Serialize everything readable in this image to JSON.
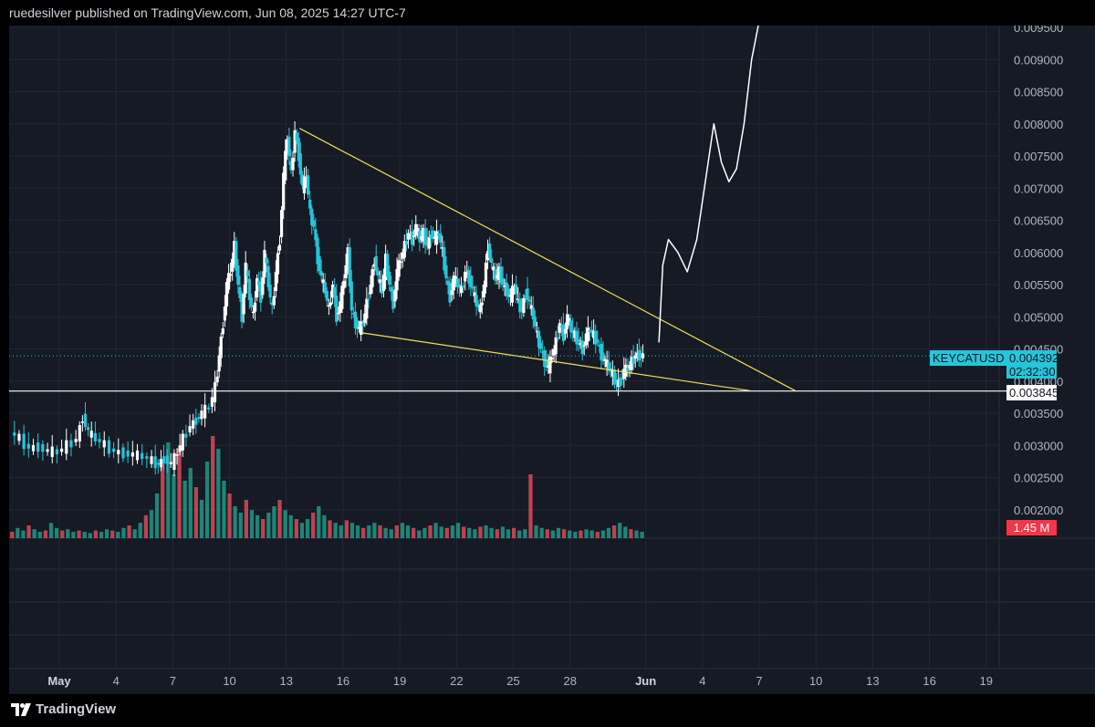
{
  "header": {
    "published": "ruedesilver published on TradingView.com, Jun 08, 2025 14:27 UTC-7"
  },
  "footer": {
    "brand": "TradingView"
  },
  "colors": {
    "background": "#161a25",
    "up": "#ffffff",
    "down": "#26c6da",
    "volume_up": "#22ab94",
    "volume_down": "#f7525f",
    "trendline": "#f1e05a",
    "symbol_badge": "#26c6da",
    "volume_badge": "#f23645"
  },
  "chart_data": {
    "type": "candlestick",
    "symbol": "KEYCATUSD",
    "last_price": "0.004392",
    "countdown": "02:32:30",
    "horizontal_line_label": "0.003845",
    "volume_label": "1.45 M",
    "ylim": [
      0.0016,
      0.0095
    ],
    "price_ticks": [
      "0.009500",
      "0.009000",
      "0.008500",
      "0.008000",
      "0.007500",
      "0.007000",
      "0.006500",
      "0.006000",
      "0.005500",
      "0.005000",
      "0.004500",
      "0.004000",
      "0.003500",
      "0.003000",
      "0.002500",
      "0.002000"
    ],
    "x_ticks": [
      {
        "label": "May",
        "day": 0,
        "bold": true
      },
      {
        "label": "4",
        "day": 3
      },
      {
        "label": "7",
        "day": 6
      },
      {
        "label": "10",
        "day": 9
      },
      {
        "label": "13",
        "day": 12
      },
      {
        "label": "16",
        "day": 15
      },
      {
        "label": "19",
        "day": 18
      },
      {
        "label": "22",
        "day": 21
      },
      {
        "label": "25",
        "day": 24
      },
      {
        "label": "28",
        "day": 27
      },
      {
        "label": "Jun",
        "day": 31,
        "bold": true
      },
      {
        "label": "4",
        "day": 34
      },
      {
        "label": "7",
        "day": 37
      },
      {
        "label": "10",
        "day": 40
      },
      {
        "label": "13",
        "day": 43
      },
      {
        "label": "16",
        "day": 46
      },
      {
        "label": "19",
        "day": 49
      }
    ],
    "price_path": [
      [
        -2.5,
        0.0032
      ],
      [
        -2,
        0.0031
      ],
      [
        -1.5,
        0.00295
      ],
      [
        -1,
        0.00298
      ],
      [
        -0.5,
        0.0029
      ],
      [
        0,
        0.0029
      ],
      [
        0.5,
        0.003
      ],
      [
        1,
        0.0031
      ],
      [
        1.3,
        0.00345
      ],
      [
        1.6,
        0.0032
      ],
      [
        2,
        0.0031
      ],
      [
        2.5,
        0.003
      ],
      [
        3,
        0.0029
      ],
      [
        3.5,
        0.00288
      ],
      [
        4,
        0.00285
      ],
      [
        4.5,
        0.00283
      ],
      [
        5,
        0.00275
      ],
      [
        5.3,
        0.0027
      ],
      [
        5.6,
        0.0028
      ],
      [
        6,
        0.0027
      ],
      [
        6.3,
        0.0029
      ],
      [
        6.6,
        0.0031
      ],
      [
        7,
        0.0033
      ],
      [
        7.3,
        0.0034
      ],
      [
        7.6,
        0.0035
      ],
      [
        8,
        0.0036
      ],
      [
        8.3,
        0.0039
      ],
      [
        8.5,
        0.0044
      ],
      [
        8.7,
        0.0049
      ],
      [
        8.9,
        0.0055
      ],
      [
        9.1,
        0.0057
      ],
      [
        9.3,
        0.0061
      ],
      [
        9.5,
        0.0055
      ],
      [
        9.7,
        0.005
      ],
      [
        9.9,
        0.0058
      ],
      [
        10.1,
        0.0053
      ],
      [
        10.3,
        0.005
      ],
      [
        10.5,
        0.0056
      ],
      [
        10.7,
        0.0053
      ],
      [
        10.9,
        0.006
      ],
      [
        11.1,
        0.0055
      ],
      [
        11.3,
        0.0051
      ],
      [
        11.5,
        0.0057
      ],
      [
        11.7,
        0.0062
      ],
      [
        11.9,
        0.0072
      ],
      [
        12.1,
        0.0078
      ],
      [
        12.3,
        0.0072
      ],
      [
        12.5,
        0.0079
      ],
      [
        12.7,
        0.0075
      ],
      [
        12.9,
        0.007
      ],
      [
        13.1,
        0.0072
      ],
      [
        13.3,
        0.0066
      ],
      [
        13.5,
        0.0064
      ],
      [
        13.7,
        0.0059
      ],
      [
        13.9,
        0.0056
      ],
      [
        14.1,
        0.0054
      ],
      [
        14.3,
        0.0051
      ],
      [
        14.5,
        0.0055
      ],
      [
        14.7,
        0.005
      ],
      [
        14.9,
        0.0052
      ],
      [
        15.1,
        0.0056
      ],
      [
        15.3,
        0.006
      ],
      [
        15.5,
        0.0051
      ],
      [
        15.7,
        0.0049
      ],
      [
        15.9,
        0.0048
      ],
      [
        16.1,
        0.0049
      ],
      [
        16.3,
        0.0052
      ],
      [
        16.5,
        0.0055
      ],
      [
        16.7,
        0.0059
      ],
      [
        16.9,
        0.0056
      ],
      [
        17.1,
        0.0054
      ],
      [
        17.3,
        0.0059
      ],
      [
        17.5,
        0.0055
      ],
      [
        17.7,
        0.0052
      ],
      [
        17.9,
        0.0057
      ],
      [
        18.1,
        0.0059
      ],
      [
        18.3,
        0.0061
      ],
      [
        18.5,
        0.0063
      ],
      [
        18.7,
        0.0062
      ],
      [
        18.9,
        0.0064
      ],
      [
        19.1,
        0.0062
      ],
      [
        19.3,
        0.0063
      ],
      [
        19.5,
        0.0061
      ],
      [
        19.7,
        0.0063
      ],
      [
        19.9,
        0.0062
      ],
      [
        20.1,
        0.0063
      ],
      [
        20.3,
        0.006
      ],
      [
        20.5,
        0.0056
      ],
      [
        20.7,
        0.0053
      ],
      [
        20.9,
        0.0056
      ],
      [
        21.1,
        0.0055
      ],
      [
        21.3,
        0.0054
      ],
      [
        21.5,
        0.0057
      ],
      [
        21.7,
        0.0056
      ],
      [
        21.9,
        0.0054
      ],
      [
        22.1,
        0.0052
      ],
      [
        22.3,
        0.0051
      ],
      [
        22.5,
        0.0055
      ],
      [
        22.7,
        0.0061
      ],
      [
        22.9,
        0.0058
      ],
      [
        23.1,
        0.0056
      ],
      [
        23.3,
        0.0057
      ],
      [
        23.5,
        0.0055
      ],
      [
        23.7,
        0.0054
      ],
      [
        23.9,
        0.0053
      ],
      [
        24.1,
        0.0055
      ],
      [
        24.3,
        0.0052
      ],
      [
        24.5,
        0.0051
      ],
      [
        24.7,
        0.0054
      ],
      [
        24.9,
        0.0052
      ],
      [
        25.1,
        0.005
      ],
      [
        25.3,
        0.0047
      ],
      [
        25.5,
        0.0045
      ],
      [
        25.7,
        0.0043
      ],
      [
        25.9,
        0.0042
      ],
      [
        26.1,
        0.0044
      ],
      [
        26.3,
        0.0046
      ],
      [
        26.5,
        0.0049
      ],
      [
        26.7,
        0.0047
      ],
      [
        26.9,
        0.005
      ],
      [
        27.1,
        0.0048
      ],
      [
        27.3,
        0.0047
      ],
      [
        27.5,
        0.0046
      ],
      [
        27.7,
        0.0045
      ],
      [
        27.9,
        0.0047
      ],
      [
        28.1,
        0.0048
      ],
      [
        28.3,
        0.0047
      ],
      [
        28.5,
        0.0046
      ],
      [
        28.7,
        0.0044
      ],
      [
        28.9,
        0.0043
      ],
      [
        29.1,
        0.0042
      ],
      [
        29.3,
        0.0041
      ],
      [
        29.5,
        0.00395
      ],
      [
        29.7,
        0.004
      ],
      [
        29.9,
        0.00415
      ],
      [
        30.1,
        0.0042
      ],
      [
        30.3,
        0.0043
      ],
      [
        30.5,
        0.0044
      ],
      [
        30.7,
        0.0044
      ],
      [
        30.9,
        0.00439
      ]
    ],
    "volumes": [
      0.05,
      0.08,
      0.06,
      0.1,
      0.07,
      0.05,
      0.06,
      0.12,
      0.08,
      0.06,
      0.07,
      0.05,
      0.06,
      0.05,
      0.04,
      0.06,
      0.05,
      0.07,
      0.06,
      0.05,
      0.08,
      0.1,
      0.07,
      0.12,
      0.18,
      0.22,
      0.35,
      0.6,
      0.75,
      0.5,
      0.7,
      0.45,
      0.55,
      0.4,
      0.3,
      0.6,
      0.8,
      0.7,
      0.45,
      0.35,
      0.25,
      0.2,
      0.3,
      0.22,
      0.18,
      0.15,
      0.2,
      0.25,
      0.3,
      0.22,
      0.18,
      0.15,
      0.12,
      0.15,
      0.2,
      0.25,
      0.18,
      0.14,
      0.12,
      0.1,
      0.14,
      0.12,
      0.1,
      0.08,
      0.1,
      0.12,
      0.1,
      0.08,
      0.07,
      0.1,
      0.12,
      0.1,
      0.08,
      0.06,
      0.08,
      0.1,
      0.12,
      0.09,
      0.08,
      0.1,
      0.12,
      0.09,
      0.08,
      0.07,
      0.09,
      0.1,
      0.08,
      0.07,
      0.09,
      0.07,
      0.08,
      0.06,
      0.07,
      0.5,
      0.1,
      0.08,
      0.07,
      0.06,
      0.08,
      0.07,
      0.06,
      0.05,
      0.06,
      0.07,
      0.06,
      0.05,
      0.06,
      0.08,
      0.1,
      0.12,
      0.09,
      0.07,
      0.06,
      0.05
    ],
    "projection": [
      [
        31.7,
        0.0046
      ],
      [
        31.9,
        0.0058
      ],
      [
        32.2,
        0.0062
      ],
      [
        32.7,
        0.006
      ],
      [
        33.2,
        0.0057
      ],
      [
        33.7,
        0.0062
      ],
      [
        34.2,
        0.0072
      ],
      [
        34.6,
        0.008
      ],
      [
        35.0,
        0.0074
      ],
      [
        35.4,
        0.0071
      ],
      [
        35.8,
        0.0073
      ],
      [
        36.2,
        0.008
      ],
      [
        36.6,
        0.009
      ],
      [
        37.0,
        0.0096
      ]
    ],
    "trendlines": [
      [
        [
          12.7,
          0.00793
        ],
        [
          38.9,
          0.00385
        ]
      ],
      [
        [
          16.0,
          0.00475
        ],
        [
          36.5,
          0.00385
        ]
      ]
    ],
    "horizontal_line": 0.003845
  }
}
